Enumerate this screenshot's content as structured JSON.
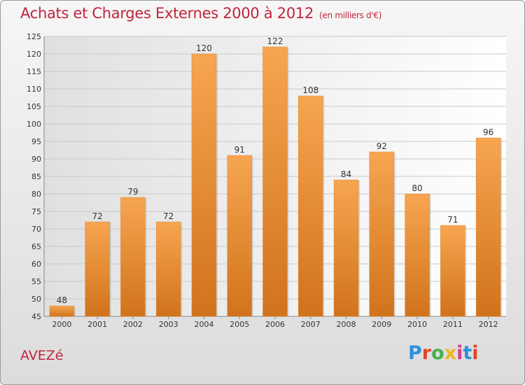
{
  "header": {
    "title": "Achats et Charges Externes 2000 à 2012",
    "subtitle": "(en milliers d'€)"
  },
  "footer": {
    "place": "AVEZé",
    "brand": "Proxiti",
    "brand_colors": [
      "#2f8fd8",
      "#e8422a",
      "#48b048",
      "#f2b41f",
      "#d93b8d",
      "#2f8fd8",
      "#e8422a"
    ]
  },
  "chart_data": {
    "type": "bar",
    "categories": [
      "2000",
      "2001",
      "2002",
      "2003",
      "2004",
      "2005",
      "2006",
      "2007",
      "2008",
      "2009",
      "2010",
      "2011",
      "2012"
    ],
    "values": [
      48,
      72,
      79,
      72,
      120,
      91,
      122,
      108,
      84,
      92,
      80,
      71,
      96
    ],
    "title": "Achats et Charges Externes 2000 à 2012",
    "ylim": [
      45,
      125
    ],
    "yticks": [
      45,
      50,
      55,
      60,
      65,
      70,
      75,
      80,
      85,
      90,
      95,
      100,
      105,
      110,
      115,
      120,
      125
    ],
    "grid": true,
    "bar_color": "#f0963c",
    "data_labels": true
  }
}
